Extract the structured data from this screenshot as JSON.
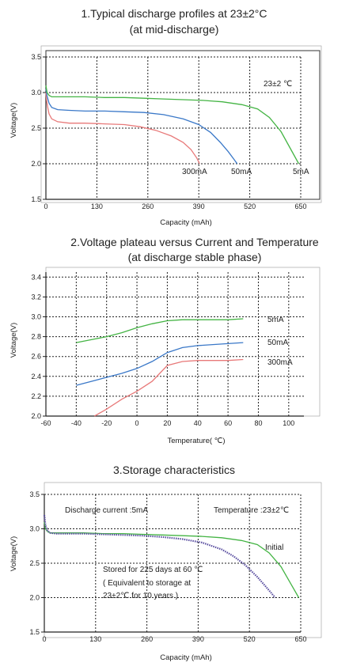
{
  "chart_data": [
    {
      "type": "line",
      "title": "1.Typical discharge profiles at 23±2°C",
      "subtitle": "(at mid-discharge)",
      "xlabel": "Capacity (mAh)",
      "ylabel": "Voltage(V)",
      "xlim": [
        0,
        650
      ],
      "ylim": [
        1.5,
        3.5
      ],
      "xticks": [
        0,
        130,
        260,
        390,
        520,
        650
      ],
      "yticks": [
        1.5,
        2.0,
        2.5,
        3.0,
        3.5
      ],
      "yticklabels": [
        "1.5",
        "2.0",
        "2.5",
        "3.0",
        "3.5"
      ],
      "grid": true,
      "annotations": [
        "23±2 ℃"
      ],
      "series": [
        {
          "name": "300mA",
          "color": "#e87979",
          "x": [
            0,
            2,
            5,
            8,
            15,
            30,
            60,
            100,
            150,
            200,
            240,
            280,
            320,
            350,
            370,
            385,
            392
          ],
          "y": [
            3.0,
            2.88,
            2.78,
            2.7,
            2.63,
            2.59,
            2.57,
            2.57,
            2.56,
            2.55,
            2.52,
            2.47,
            2.39,
            2.3,
            2.2,
            2.08,
            2.0
          ]
        },
        {
          "name": "50mA",
          "color": "#3a78c8",
          "x": [
            0,
            3,
            8,
            15,
            30,
            60,
            100,
            150,
            200,
            250,
            300,
            350,
            390,
            420,
            445,
            465,
            480,
            488
          ],
          "y": [
            3.05,
            2.95,
            2.85,
            2.79,
            2.76,
            2.75,
            2.74,
            2.74,
            2.73,
            2.72,
            2.69,
            2.63,
            2.55,
            2.44,
            2.3,
            2.17,
            2.06,
            2.0
          ]
        },
        {
          "name": "5mA",
          "color": "#44b444",
          "x": [
            0,
            3,
            8,
            15,
            30,
            60,
            100,
            150,
            200,
            250,
            300,
            350,
            400,
            450,
            500,
            540,
            570,
            600,
            625,
            645
          ],
          "y": [
            3.1,
            3.0,
            2.96,
            2.94,
            2.94,
            2.94,
            2.94,
            2.93,
            2.93,
            2.92,
            2.91,
            2.9,
            2.89,
            2.87,
            2.83,
            2.77,
            2.65,
            2.45,
            2.2,
            2.0
          ]
        }
      ]
    },
    {
      "type": "line",
      "title": "2.Voltage plateau versus Current and Temperature",
      "subtitle": "(at discharge stable phase)",
      "xlabel": "Temperature( ℃)",
      "ylabel": "Voltage(V)",
      "xlim": [
        -60,
        110
      ],
      "ylim": [
        2.0,
        3.45
      ],
      "xticks": [
        -60,
        -40,
        -20,
        0,
        20,
        40,
        60,
        80,
        100
      ],
      "yticks": [
        2.0,
        2.2,
        2.4,
        2.6,
        2.8,
        3.0,
        3.2,
        3.4
      ],
      "yticklabels": [
        "2.0",
        "2.2",
        "2.4",
        "2.6",
        "2.8",
        "3.0",
        "3.2",
        "3.4"
      ],
      "grid": true,
      "series": [
        {
          "name": "5mA",
          "color": "#44b444",
          "x": [
            -40,
            -30,
            -20,
            -10,
            0,
            10,
            20,
            30,
            40,
            50,
            60,
            70
          ],
          "y": [
            2.74,
            2.77,
            2.8,
            2.84,
            2.89,
            2.93,
            2.96,
            2.97,
            2.97,
            2.97,
            2.97,
            2.98
          ]
        },
        {
          "name": "50mA",
          "color": "#3a78c8",
          "x": [
            -40,
            -30,
            -20,
            -10,
            0,
            10,
            20,
            30,
            40,
            50,
            60,
            70
          ],
          "y": [
            2.31,
            2.35,
            2.39,
            2.43,
            2.48,
            2.55,
            2.64,
            2.69,
            2.71,
            2.72,
            2.73,
            2.74
          ]
        },
        {
          "name": "300mA",
          "color": "#e87979",
          "x": [
            -28,
            -20,
            -10,
            0,
            10,
            20,
            30,
            40,
            50,
            60,
            70
          ],
          "y": [
            2.0,
            2.07,
            2.17,
            2.25,
            2.35,
            2.51,
            2.55,
            2.56,
            2.56,
            2.56,
            2.57
          ]
        }
      ]
    },
    {
      "type": "line",
      "title": "3.Storage characteristics",
      "xlabel": "Capacity (mAh)",
      "ylabel": "Voltage(V)",
      "xlim": [
        0,
        650
      ],
      "ylim": [
        1.5,
        3.5
      ],
      "xticks": [
        0,
        130,
        260,
        390,
        520,
        650
      ],
      "yticks": [
        1.5,
        2.0,
        2.5,
        3.0,
        3.5
      ],
      "yticklabels": [
        "1.5",
        "2.0",
        "2.5",
        "3.0",
        "3.5"
      ],
      "grid": true,
      "annotations": [
        "Discharge current :5mA",
        "Temperature :23±2℃",
        "Stored for 225 days at 60 ℃",
        "( Equivalent to storage at",
        "23±2℃ for 10 years )"
      ],
      "series": [
        {
          "name": "Initial",
          "color": "#44b444",
          "x": [
            0,
            3,
            8,
            15,
            30,
            60,
            100,
            150,
            200,
            250,
            300,
            350,
            400,
            450,
            500,
            540,
            570,
            600,
            625,
            645
          ],
          "y": [
            3.1,
            3.0,
            2.96,
            2.94,
            2.94,
            2.94,
            2.94,
            2.93,
            2.93,
            2.92,
            2.91,
            2.9,
            2.89,
            2.87,
            2.83,
            2.77,
            2.65,
            2.45,
            2.2,
            2.0
          ]
        },
        {
          "name": "",
          "color": "#5a4fa0",
          "x": [
            0,
            3,
            8,
            15,
            30,
            60,
            100,
            150,
            200,
            250,
            300,
            350,
            400,
            450,
            480,
            510,
            540,
            560,
            575,
            585
          ],
          "y": [
            3.2,
            3.05,
            2.97,
            2.94,
            2.93,
            2.93,
            2.93,
            2.92,
            2.91,
            2.9,
            2.88,
            2.85,
            2.8,
            2.7,
            2.6,
            2.47,
            2.3,
            2.17,
            2.07,
            2.0
          ]
        }
      ]
    }
  ],
  "labels": {
    "c1_5mA": "5mA",
    "c1_50mA": "50mA",
    "c1_300mA": "300mA",
    "c2_5mA": "5mA",
    "c2_50mA": "50mA",
    "c2_300mA": "300mA",
    "c3_initial": "Initial"
  }
}
